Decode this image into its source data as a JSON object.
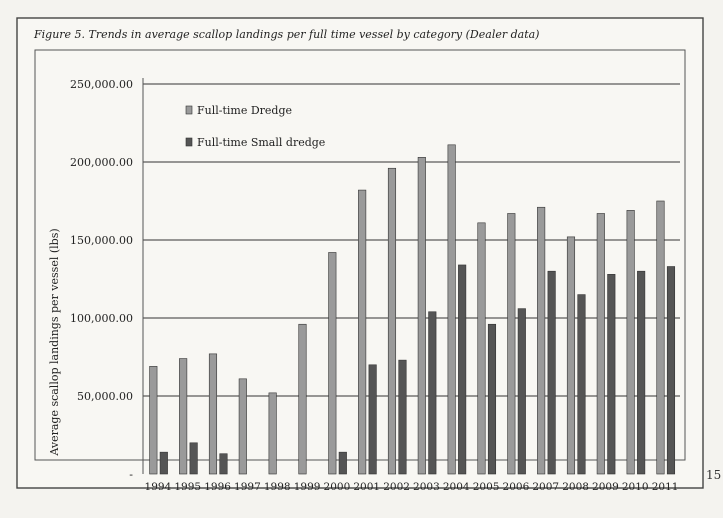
{
  "page_number": "15",
  "chart_data": {
    "type": "bar",
    "title": "Figure 5. Trends in average scallop landings per full time vessel by category (Dealer data)",
    "xlabel": "",
    "ylabel": "Average scallop landings per vessel (lbs)",
    "ylim": [
      0,
      250000
    ],
    "yticks": [
      "-",
      "50,000.00",
      "100,000.00",
      "150,000.00",
      "200,000.00",
      "250,000.00"
    ],
    "grid": true,
    "legend_position": "top-left",
    "categories": [
      "1994",
      "1995",
      "1996",
      "1997",
      "1998",
      "1999",
      "2000",
      "2001",
      "2002",
      "2003",
      "2004",
      "2005",
      "2006",
      "2007",
      "2008",
      "2009",
      "2010",
      "2011"
    ],
    "series": [
      {
        "name": "Full-time Dredge",
        "color": "#9a9a9a",
        "values": [
          69000,
          74000,
          77000,
          61000,
          52000,
          96000,
          142000,
          182000,
          196000,
          203000,
          211000,
          161000,
          167000,
          171000,
          152000,
          167000,
          169000,
          175000
        ]
      },
      {
        "name": "Full-time Small dredge",
        "color": "#555555",
        "values": [
          14000,
          20000,
          13000,
          0,
          0,
          0,
          14000,
          70000,
          73000,
          104000,
          134000,
          96000,
          106000,
          130000,
          115000,
          128000,
          130000,
          133000
        ]
      }
    ]
  }
}
